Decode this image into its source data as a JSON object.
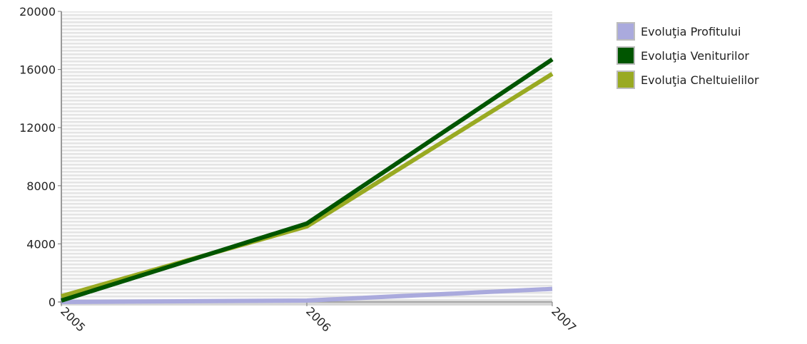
{
  "chart_data": {
    "type": "line",
    "x": [
      "2005",
      "2006",
      "2007"
    ],
    "series": [
      {
        "name": "Evoluţia Profitului",
        "values": [
          0,
          100,
          900
        ],
        "color": "#aaaadd"
      },
      {
        "name": "Evoluţia Veniturilor",
        "values": [
          100,
          5400,
          16700
        ],
        "color": "#005500"
      },
      {
        "name": "Evoluţia Cheltuielilor",
        "values": [
          400,
          5200,
          15700
        ],
        "color": "#99aa22"
      }
    ],
    "ylim": [
      0,
      20000
    ],
    "yticks": [
      "0",
      "4000",
      "8000",
      "12000",
      "16000",
      "20000"
    ],
    "xticks": [
      "2005",
      "2006",
      "2007"
    ],
    "grid": "horizontal stripes",
    "legend_position": "right"
  }
}
